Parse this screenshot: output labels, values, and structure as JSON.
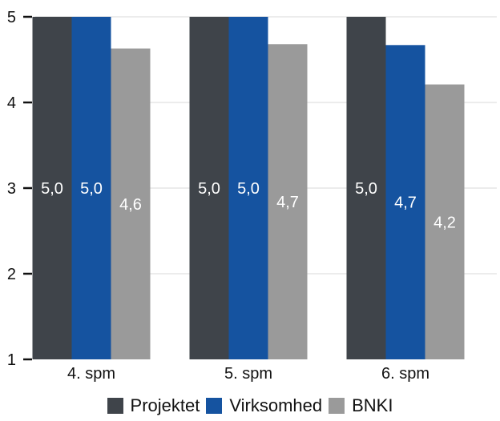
{
  "chart_data": {
    "type": "bar",
    "categories": [
      "4. spm",
      "5. spm",
      "6. spm"
    ],
    "series": [
      {
        "name": "Projektet",
        "color": "#3f444a",
        "values": [
          5.0,
          5.0,
          5.0
        ],
        "labels": [
          "5,0",
          "5,0",
          "5,0"
        ]
      },
      {
        "name": "Virksomhed",
        "color": "#1553a0",
        "values": [
          5.0,
          5.0,
          4.67
        ],
        "labels": [
          "5,0",
          "5,0",
          "4,7"
        ]
      },
      {
        "name": "BNKI",
        "color": "#9a9a9a",
        "values": [
          4.63,
          4.68,
          4.21
        ],
        "labels": [
          "4,6",
          "4,7",
          "4,2"
        ]
      }
    ],
    "ylim": [
      1,
      5
    ],
    "yticks": [
      1,
      2,
      3,
      4,
      5
    ],
    "ytick_labels": [
      "1",
      "2",
      "3",
      "4",
      "5"
    ],
    "grid": true,
    "legend_position": "bottom"
  }
}
